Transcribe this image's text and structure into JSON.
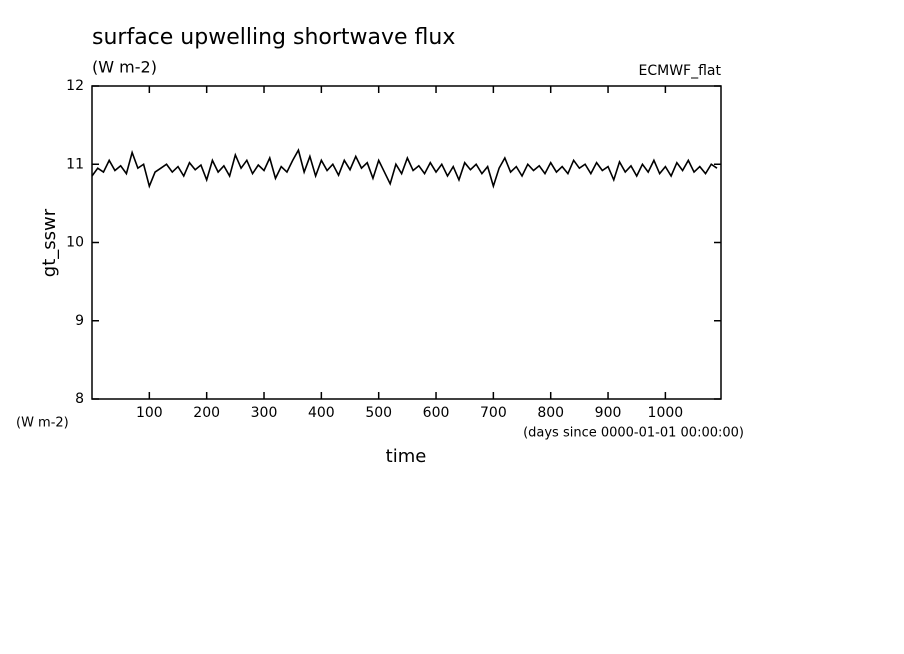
{
  "chart_data": {
    "type": "line",
    "title": "surface upwelling shortwave flux",
    "units": "(W m-2)",
    "source": "ECMWF_flat",
    "y_label": "gt_sswr",
    "y_units": "(W m-2)",
    "x_units": "(days since 0000-01-01 00:00:00)",
    "x_label": "time",
    "xlim": [
      0,
      1097
    ],
    "xticks": [
      100,
      200,
      300,
      400,
      500,
      600,
      700,
      800,
      900,
      1000
    ],
    "ylim": [
      8,
      12
    ],
    "yticks": [
      8,
      9,
      10,
      11,
      12
    ],
    "color": "#000000",
    "x": [
      0,
      10,
      20,
      30,
      40,
      50,
      60,
      70,
      80,
      90,
      100,
      110,
      120,
      130,
      140,
      150,
      160,
      170,
      180,
      190,
      200,
      210,
      220,
      230,
      240,
      250,
      260,
      270,
      280,
      290,
      300,
      310,
      320,
      330,
      340,
      350,
      360,
      370,
      380,
      390,
      400,
      410,
      420,
      430,
      440,
      450,
      460,
      470,
      480,
      490,
      500,
      510,
      520,
      530,
      540,
      550,
      560,
      570,
      580,
      590,
      600,
      610,
      620,
      630,
      640,
      650,
      660,
      670,
      680,
      690,
      700,
      710,
      720,
      730,
      740,
      750,
      760,
      770,
      780,
      790,
      800,
      810,
      820,
      830,
      840,
      850,
      860,
      870,
      880,
      890,
      900,
      910,
      920,
      930,
      940,
      950,
      960,
      970,
      980,
      990,
      1000,
      1010,
      1020,
      1030,
      1040,
      1050,
      1060,
      1070,
      1080,
      1090
    ],
    "values": [
      10.85,
      10.95,
      10.9,
      11.05,
      10.92,
      10.98,
      10.88,
      11.15,
      10.95,
      11.0,
      10.72,
      10.9,
      10.95,
      11.0,
      10.9,
      10.97,
      10.85,
      11.02,
      10.93,
      10.99,
      10.8,
      11.05,
      10.9,
      10.98,
      10.85,
      11.12,
      10.95,
      11.05,
      10.88,
      10.99,
      10.92,
      11.08,
      10.82,
      10.97,
      10.9,
      11.05,
      11.18,
      10.9,
      11.1,
      10.85,
      11.05,
      10.92,
      11.0,
      10.86,
      11.05,
      10.93,
      11.1,
      10.95,
      11.02,
      10.82,
      11.05,
      10.9,
      10.75,
      11.0,
      10.88,
      11.08,
      10.92,
      10.98,
      10.88,
      11.02,
      10.9,
      11.0,
      10.85,
      10.97,
      10.8,
      11.02,
      10.93,
      11.0,
      10.88,
      10.97,
      10.72,
      10.95,
      11.08,
      10.9,
      10.97,
      10.85,
      11.0,
      10.92,
      10.98,
      10.88,
      11.02,
      10.9,
      10.97,
      10.88,
      11.05,
      10.95,
      11.0,
      10.88,
      11.02,
      10.92,
      10.97,
      10.8,
      11.03,
      10.9,
      10.98,
      10.85,
      11.0,
      10.9,
      11.05,
      10.88,
      10.97,
      10.85,
      11.02,
      10.92,
      11.05,
      10.9,
      10.97,
      10.88,
      11.0,
      10.95
    ]
  }
}
